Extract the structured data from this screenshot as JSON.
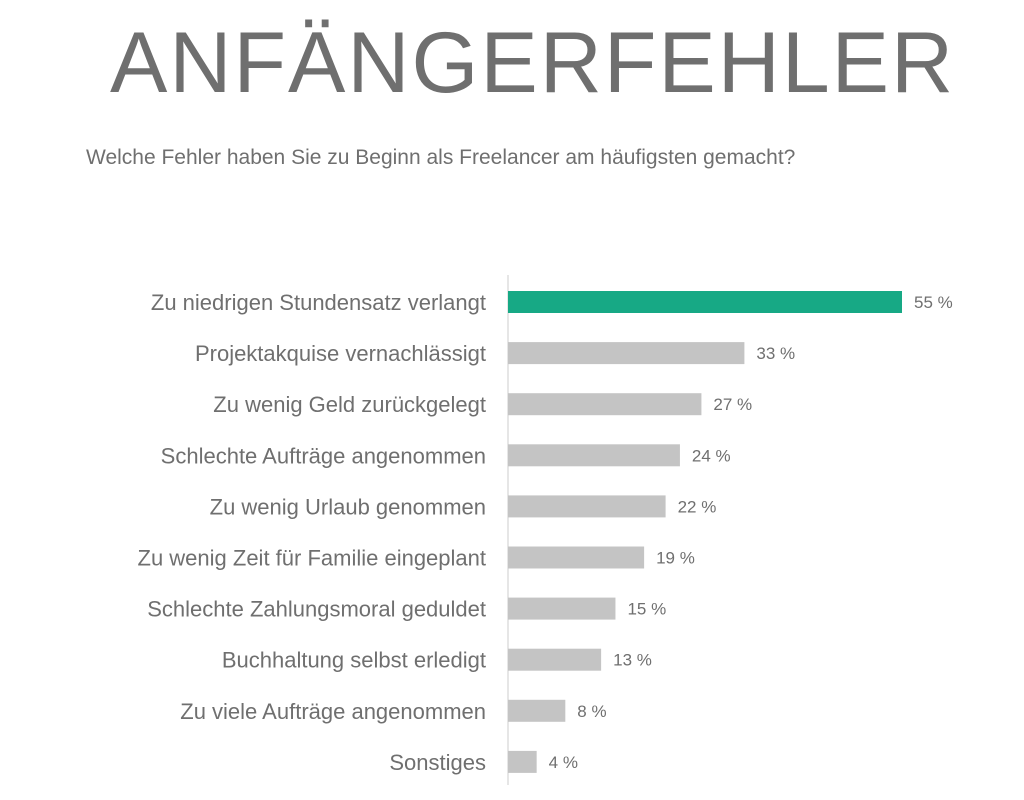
{
  "title": "ANFÄNGERFEHLER",
  "subtitle": "Welche Fehler haben Sie zu Beginn als Freelancer am häufigsten gemacht?",
  "colors": {
    "highlight": "#17a985",
    "bar": "#c4c4c4",
    "axis": "#cccccc",
    "text": "#6f6f6f"
  },
  "chart_data": {
    "type": "bar",
    "orientation": "horizontal",
    "title": "ANFÄNGERFEHLER",
    "subtitle": "Welche Fehler haben Sie zu Beginn als Freelancer am häufigsten gemacht?",
    "categories": [
      "Zu niedrigen Stundensatz verlangt",
      "Projektakquise vernachlässigt",
      "Zu wenig Geld zurückgelegt",
      "Schlechte Aufträge angenommen",
      "Zu wenig Urlaub genommen",
      "Zu wenig Zeit für Familie eingeplant",
      "Schlechte Zahlungsmoral geduldet",
      "Buchhaltung selbst erledigt",
      "Zu viele Aufträge angenommen",
      "Sonstiges"
    ],
    "values": [
      55,
      33,
      27,
      24,
      22,
      19,
      15,
      13,
      8,
      4
    ],
    "value_labels": [
      "55 %",
      "33 %",
      "27 %",
      "24 %",
      "22 %",
      "19 %",
      "15 %",
      "13 %",
      "8 %",
      "4 %"
    ],
    "unit": "%",
    "highlight_index": 0,
    "xlim": [
      0,
      55
    ],
    "xlabel": "",
    "ylabel": "",
    "grid": false,
    "legend": "none"
  }
}
